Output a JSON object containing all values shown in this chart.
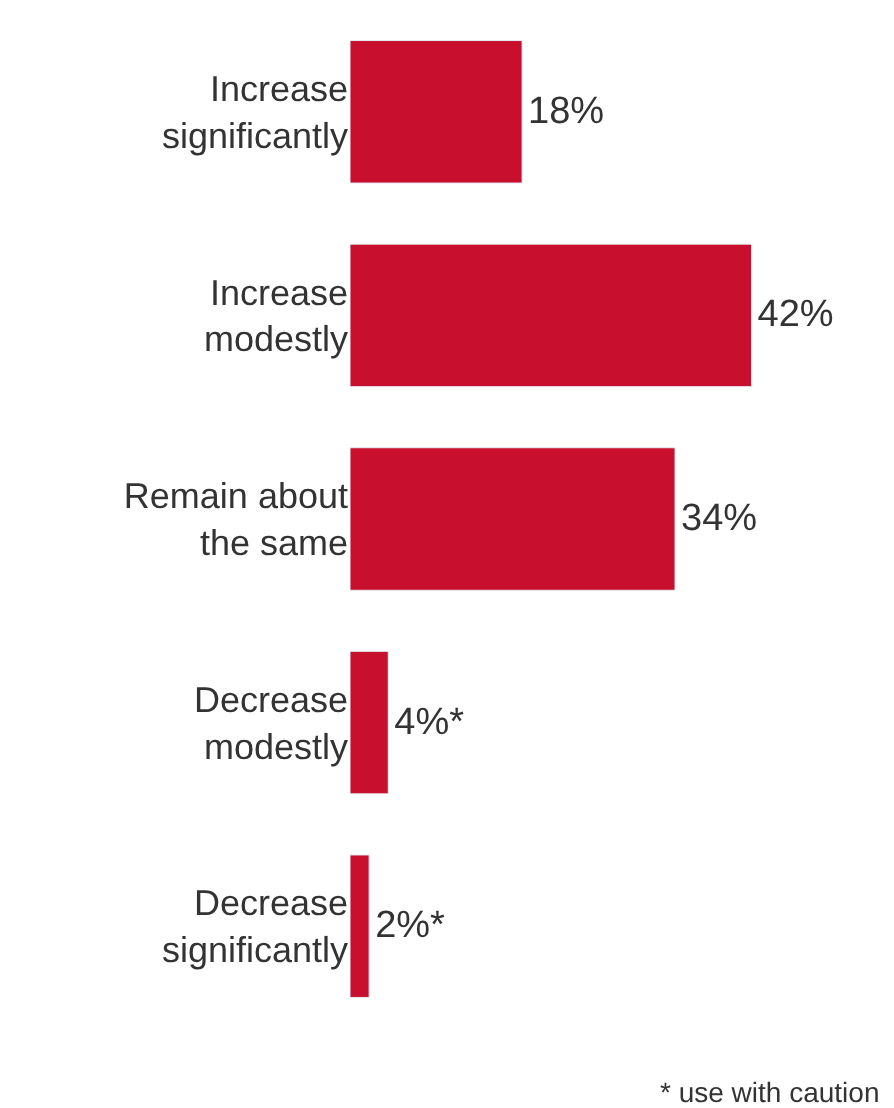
{
  "chart_data": {
    "type": "bar",
    "orientation": "horizontal",
    "categories": [
      "Increase significantly",
      "Increase modestly",
      "Remain about the same",
      "Decrease modestly",
      "Decrease significantly"
    ],
    "values": [
      18,
      42,
      34,
      4,
      2
    ],
    "value_labels": [
      "18%",
      "42%",
      "34%",
      "4%*",
      "2%*"
    ],
    "color": "#c8102e",
    "annotations": [
      "* use with caution"
    ],
    "legend": false
  }
}
